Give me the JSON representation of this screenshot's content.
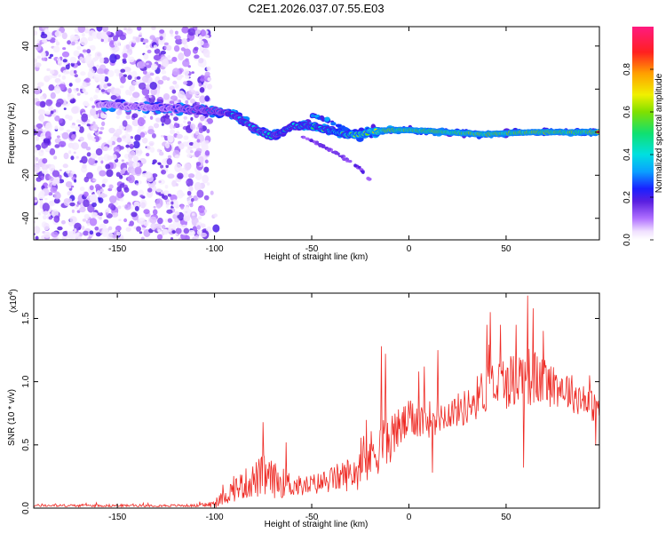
{
  "chart_data": [
    {
      "type": "heatmap",
      "title": "C2E1.2026.037.07.55.E03",
      "xlabel": "Height of straight line (km)",
      "ylabel": "Frequency (Hz)",
      "xlim": [
        -193,
        98
      ],
      "ylim": [
        -50,
        49
      ],
      "xticks": [
        -150,
        -100,
        -50,
        0,
        50
      ],
      "yticks": [
        -40,
        -20,
        0,
        20,
        40
      ],
      "colorbar": {
        "label": "Normalized spectral amplitude",
        "range": [
          0.0,
          1.0
        ],
        "ticks": [
          0.0,
          0.2,
          0.4,
          0.6,
          0.8
        ],
        "tick_labels": [
          "0.0",
          "0.2",
          "0.4",
          "0.6",
          "0.8"
        ]
      },
      "noise_region": {
        "x": [
          -193,
          -103
        ],
        "y": [
          -50,
          49
        ],
        "amplitude": [
          0.02,
          0.2
        ]
      },
      "main_trace": [
        {
          "x": -160,
          "y": 13,
          "amp": 0.2
        },
        {
          "x": -140,
          "y": 12,
          "amp": 0.2
        },
        {
          "x": -120,
          "y": 11,
          "amp": 0.25
        },
        {
          "x": -100,
          "y": 10,
          "amp": 0.3
        },
        {
          "x": -90,
          "y": 8,
          "amp": 0.4
        },
        {
          "x": -80,
          "y": 2,
          "amp": 0.45
        },
        {
          "x": -70,
          "y": -2,
          "amp": 0.45
        },
        {
          "x": -60,
          "y": 3,
          "amp": 0.45
        },
        {
          "x": -50,
          "y": 3,
          "amp": 0.5
        },
        {
          "x": -40,
          "y": 1,
          "amp": 0.55
        },
        {
          "x": -30,
          "y": -2,
          "amp": 0.6
        },
        {
          "x": -20,
          "y": 0,
          "amp": 0.8
        },
        {
          "x": -10,
          "y": 1,
          "amp": 0.95
        },
        {
          "x": 0,
          "y": 1,
          "amp": 0.95
        },
        {
          "x": 20,
          "y": 0,
          "amp": 0.95
        },
        {
          "x": 40,
          "y": -1,
          "amp": 0.95
        },
        {
          "x": 60,
          "y": 0,
          "amp": 0.95
        },
        {
          "x": 80,
          "y": 0,
          "amp": 0.95
        },
        {
          "x": 98,
          "y": 0,
          "amp": 0.95
        }
      ],
      "secondary_trace": [
        {
          "x": -50,
          "y": 8
        },
        {
          "x": -40,
          "y": 5
        },
        {
          "x": -30,
          "y": 0
        },
        {
          "x": -25,
          "y": -2
        }
      ],
      "lower_trace": [
        {
          "x": -55,
          "y": -2
        },
        {
          "x": -45,
          "y": -6
        },
        {
          "x": -35,
          "y": -11
        },
        {
          "x": -25,
          "y": -17
        },
        {
          "x": -20,
          "y": -22
        }
      ]
    },
    {
      "type": "line",
      "title": "",
      "xlabel": "Height of straight line (km)",
      "ylabel": "SNR (10 * v/v)",
      "exponent_label": "(x10",
      "exponent_power": "4",
      "exponent_close": ")",
      "xlim": [
        -193,
        98
      ],
      "ylim": [
        0,
        1.7
      ],
      "xticks": [
        -150,
        -100,
        -50,
        0,
        50
      ],
      "yticks": [
        0.0,
        0.5,
        1.0,
        1.5
      ],
      "ytick_labels": [
        "0.0",
        "0.5",
        "1.0",
        "1.5"
      ],
      "series": [
        {
          "name": "SNR",
          "color": "#ee2a24",
          "envelope": [
            {
              "x": -193,
              "base": 0.02,
              "amp": 0.01
            },
            {
              "x": -110,
              "base": 0.02,
              "amp": 0.01
            },
            {
              "x": -100,
              "base": 0.03,
              "amp": 0.03
            },
            {
              "x": -90,
              "base": 0.15,
              "amp": 0.1
            },
            {
              "x": -80,
              "base": 0.22,
              "amp": 0.14
            },
            {
              "x": -75,
              "base": 0.25,
              "amp": 0.18
            },
            {
              "x": -65,
              "base": 0.2,
              "amp": 0.12
            },
            {
              "x": -55,
              "base": 0.17,
              "amp": 0.08
            },
            {
              "x": -45,
              "base": 0.2,
              "amp": 0.09
            },
            {
              "x": -35,
              "base": 0.25,
              "amp": 0.12
            },
            {
              "x": -25,
              "base": 0.3,
              "amp": 0.16
            },
            {
              "x": -18,
              "base": 0.45,
              "amp": 0.22
            },
            {
              "x": -10,
              "base": 0.55,
              "amp": 0.2
            },
            {
              "x": 0,
              "base": 0.7,
              "amp": 0.15
            },
            {
              "x": 10,
              "base": 0.7,
              "amp": 0.15
            },
            {
              "x": 20,
              "base": 0.75,
              "amp": 0.12
            },
            {
              "x": 30,
              "base": 0.8,
              "amp": 0.15
            },
            {
              "x": 40,
              "base": 0.95,
              "amp": 0.2
            },
            {
              "x": 50,
              "base": 1.0,
              "amp": 0.22
            },
            {
              "x": 60,
              "base": 1.05,
              "amp": 0.25
            },
            {
              "x": 70,
              "base": 1.0,
              "amp": 0.2
            },
            {
              "x": 80,
              "base": 0.95,
              "amp": 0.16
            },
            {
              "x": 90,
              "base": 0.85,
              "amp": 0.14
            },
            {
              "x": 98,
              "base": 0.78,
              "amp": 0.12
            }
          ],
          "spikes": [
            {
              "x": -75,
              "y": 0.68
            },
            {
              "x": -63,
              "y": 0.52
            },
            {
              "x": -14,
              "y": 1.28
            },
            {
              "x": -12,
              "y": 1.22
            },
            {
              "x": 5,
              "y": 1.08
            },
            {
              "x": 8,
              "y": 1.12
            },
            {
              "x": 15,
              "y": 1.25
            },
            {
              "x": 40,
              "y": 1.45
            },
            {
              "x": 42,
              "y": 1.55
            },
            {
              "x": 47,
              "y": 1.45
            },
            {
              "x": 55,
              "y": 1.45
            },
            {
              "x": 61,
              "y": 1.68
            },
            {
              "x": 64,
              "y": 1.58
            },
            {
              "x": 93,
              "y": 1.05
            }
          ],
          "dips": [
            {
              "x": 12,
              "y": 0.28
            },
            {
              "x": 59,
              "y": 0.32
            },
            {
              "x": 96,
              "y": 0.5
            }
          ]
        }
      ]
    }
  ]
}
